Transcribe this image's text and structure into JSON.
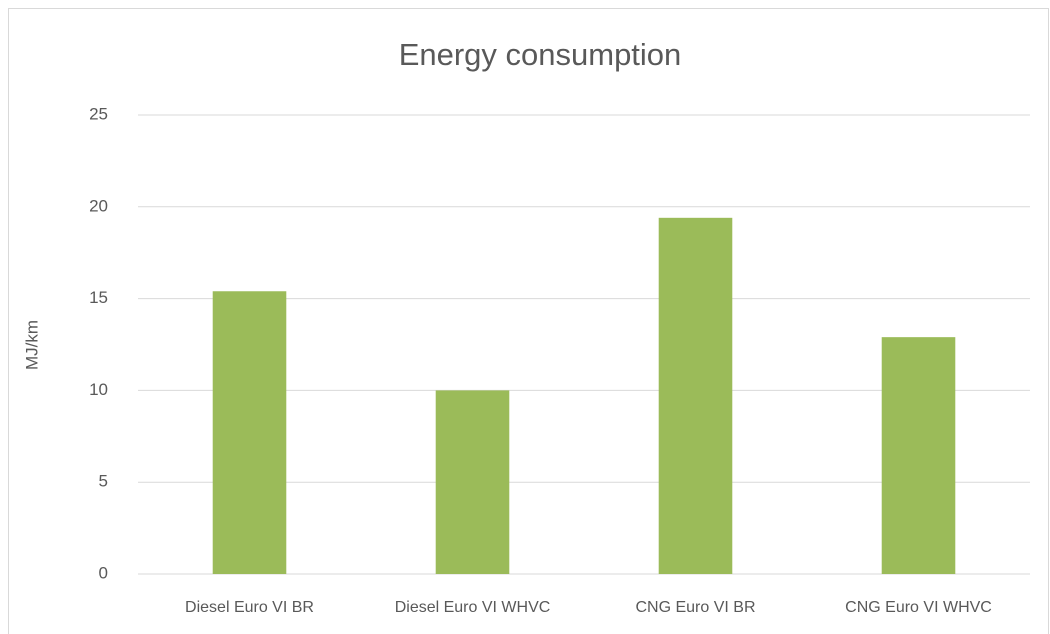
{
  "chart_data": {
    "type": "bar",
    "title": "Energy consumption",
    "y_label": "MJ/km",
    "categories": [
      "Diesel Euro VI BR",
      "Diesel Euro VI WHVC",
      "CNG Euro VI BR",
      "CNG Euro VI WHVC"
    ],
    "values": [
      15.4,
      10.0,
      19.4,
      12.9
    ],
    "color": "#9bbb59",
    "ylim": [
      0,
      25
    ],
    "yticks": [
      0,
      5,
      10,
      15,
      20,
      25
    ],
    "grid": true
  }
}
